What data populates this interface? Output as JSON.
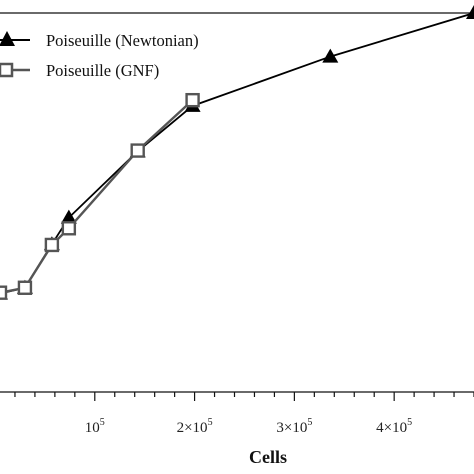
{
  "chart_data": {
    "type": "line",
    "xlabel": "Cells",
    "x_ticks": [
      {
        "value": 100000,
        "mantissa": "",
        "base": "10",
        "exp": "5"
      },
      {
        "value": 200000,
        "mantissa": "2×",
        "base": "10",
        "exp": "5"
      },
      {
        "value": 300000,
        "mantissa": "3×",
        "base": "10",
        "exp": "5"
      },
      {
        "value": 400000,
        "mantissa": "4×",
        "base": "10",
        "exp": "5"
      }
    ],
    "xlim": [
      0,
      480000
    ],
    "ylim": [
      0,
      1
    ],
    "legend_position": "top-left",
    "grid": false,
    "series": [
      {
        "name": "Poiseuille (Newtonian)",
        "marker": "triangle",
        "color": "#000000",
        "x": [
          5000,
          30000,
          57000,
          74000,
          143000,
          198000,
          336000,
          480000
        ],
        "y": [
          0.26,
          0.275,
          0.39,
          0.46,
          0.635,
          0.755,
          0.885,
          1.0
        ]
      },
      {
        "name": "Poiseuille (GNF)",
        "marker": "square",
        "color": "#555555",
        "x": [
          5000,
          30000,
          57000,
          74000,
          143000,
          198000
        ],
        "y": [
          0.262,
          0.275,
          0.388,
          0.432,
          0.637,
          0.77
        ]
      }
    ]
  }
}
